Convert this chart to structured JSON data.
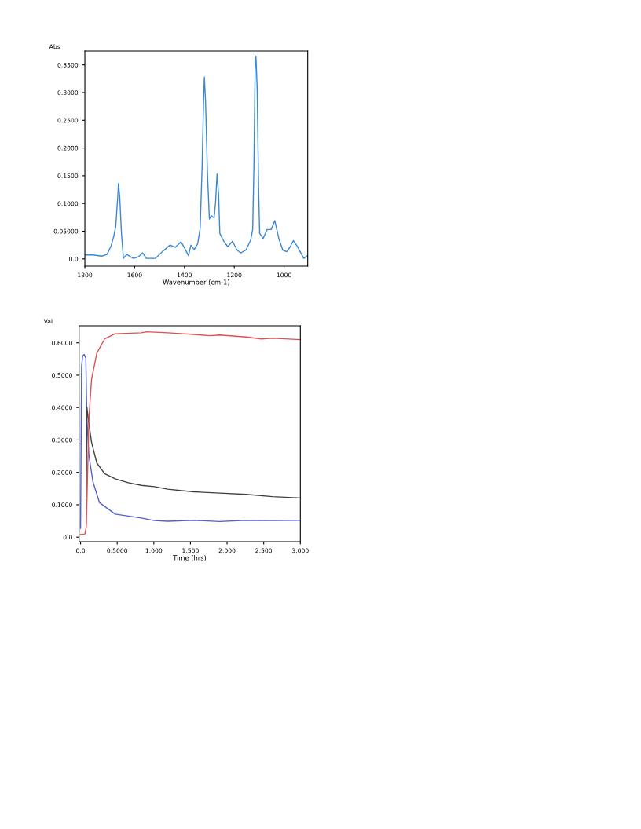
{
  "chart_data": [
    {
      "type": "line",
      "xlabel": "Wavenumber (cm-1)",
      "ylabel": "Abs",
      "xlim": [
        1800,
        905
      ],
      "ylim": [
        -0.013,
        0.375
      ],
      "xticks": [
        1800,
        1600,
        1400,
        1200,
        1000
      ],
      "yticks": [
        {
          "value": 0,
          "label": "0.0"
        },
        {
          "value": 0.05,
          "label": "0.05000"
        },
        {
          "value": 0.1,
          "label": "0.1000"
        },
        {
          "value": 0.15,
          "label": "0.1500"
        },
        {
          "value": 0.2,
          "label": "0.2000"
        },
        {
          "value": 0.25,
          "label": "0.2500"
        },
        {
          "value": 0.3,
          "label": "0.3000"
        },
        {
          "value": 0.35,
          "label": "0.3500"
        }
      ],
      "grid": false,
      "legend": false,
      "series": [
        {
          "color": "#3a87d6",
          "x": [
            1800,
            1774,
            1732,
            1711,
            1695,
            1684,
            1676,
            1668,
            1665,
            1660,
            1653,
            1645,
            1632,
            1605,
            1584,
            1568,
            1553,
            1516,
            1489,
            1458,
            1437,
            1414,
            1400,
            1384,
            1374,
            1361,
            1347,
            1337,
            1329,
            1323,
            1320,
            1315,
            1308,
            1300,
            1292,
            1281,
            1275,
            1269,
            1263,
            1258,
            1242,
            1226,
            1207,
            1189,
            1174,
            1153,
            1134,
            1126,
            1121,
            1116,
            1113,
            1108,
            1102,
            1098,
            1084,
            1068,
            1052,
            1037,
            1021,
            1005,
            989,
            974,
            963,
            947,
            921,
            905
          ],
          "values": [
            0.007,
            0.0075,
            0.005,
            0.008,
            0.023,
            0.041,
            0.058,
            0.112,
            0.136,
            0.112,
            0.046,
            0.001,
            0.008,
            0.001,
            0.004,
            0.011,
            0.001,
            0.001,
            0.013,
            0.025,
            0.021,
            0.031,
            0.02,
            0.006,
            0.025,
            0.017,
            0.027,
            0.055,
            0.168,
            0.29,
            0.328,
            0.281,
            0.159,
            0.072,
            0.078,
            0.074,
            0.102,
            0.153,
            0.117,
            0.046,
            0.032,
            0.022,
            0.032,
            0.016,
            0.011,
            0.016,
            0.034,
            0.053,
            0.168,
            0.351,
            0.366,
            0.309,
            0.121,
            0.046,
            0.037,
            0.053,
            0.053,
            0.069,
            0.037,
            0.016,
            0.013,
            0.023,
            0.033,
            0.023,
            0.001,
            0.006
          ]
        }
      ]
    },
    {
      "type": "line",
      "xlabel": "Time (hrs)",
      "ylabel": "Val",
      "xlim": [
        -0.02,
        3.0
      ],
      "ylim": [
        -0.014,
        0.6525
      ],
      "xticks": [
        {
          "value": 0,
          "label": "0.0"
        },
        {
          "value": 0.5,
          "label": "0.5000"
        },
        {
          "value": 1,
          "label": "1.000"
        },
        {
          "value": 1.5,
          "label": "1.500"
        },
        {
          "value": 2,
          "label": "2.000"
        },
        {
          "value": 2.5,
          "label": "2.500"
        },
        {
          "value": 3,
          "label": "3.000"
        }
      ],
      "yticks": [
        {
          "value": 0,
          "label": "0.0"
        },
        {
          "value": 0.1,
          "label": "0.1000"
        },
        {
          "value": 0.2,
          "label": "0.2000"
        },
        {
          "value": 0.3,
          "label": "0.3000"
        },
        {
          "value": 0.4,
          "label": "0.4000"
        },
        {
          "value": 0.5,
          "label": "0.5000"
        },
        {
          "value": 0.6,
          "label": "0.6000"
        }
      ],
      "grid": false,
      "legend": false,
      "series": [
        {
          "color": "#5060d0",
          "x": [
            0,
            0.014,
            0.029,
            0.05,
            0.072,
            0.086,
            0.114,
            0.168,
            0.257,
            0.472,
            0.83,
            1.008,
            1.19,
            1.545,
            1.9,
            2.26,
            2.62,
            3.0
          ],
          "values": [
            0.027,
            0.527,
            0.56,
            0.564,
            0.552,
            0.366,
            0.253,
            0.172,
            0.107,
            0.071,
            0.059,
            0.051,
            0.049,
            0.052,
            0.048,
            0.052,
            0.051,
            0.052
          ]
        },
        {
          "color": "#404040",
          "x": [
            0.079,
            0.086,
            0.114,
            0.15,
            0.222,
            0.329,
            0.472,
            0.651,
            0.83,
            1.008,
            1.19,
            1.545,
            1.9,
            2.26,
            2.62,
            3.0
          ],
          "values": [
            0.124,
            0.402,
            0.35,
            0.293,
            0.229,
            0.196,
            0.18,
            0.168,
            0.16,
            0.156,
            0.148,
            0.14,
            0.136,
            0.132,
            0.125,
            0.121
          ]
        },
        {
          "color": "#e05050",
          "x": [
            0,
            0.06,
            0.079,
            0.097,
            0.114,
            0.15,
            0.222,
            0.329,
            0.472,
            0.83,
            0.9,
            1.19,
            1.545,
            1.76,
            1.9,
            2.26,
            2.47,
            2.62,
            3.0
          ],
          "values": [
            0.008,
            0.01,
            0.035,
            0.204,
            0.366,
            0.487,
            0.568,
            0.612,
            0.628,
            0.631,
            0.634,
            0.631,
            0.626,
            0.622,
            0.624,
            0.618,
            0.612,
            0.614,
            0.61
          ]
        }
      ]
    }
  ]
}
